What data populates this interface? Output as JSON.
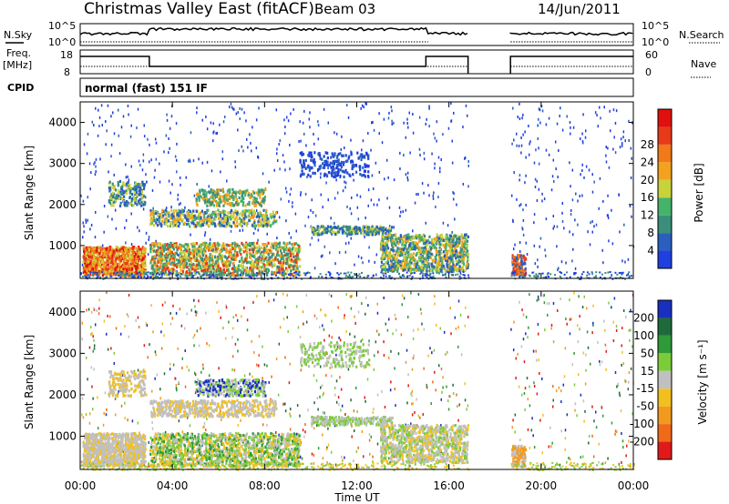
{
  "header": {
    "title": "Christmas Valley East (fitACF)",
    "beam": "Beam 03",
    "date": "14/Jun/2011"
  },
  "top_panels": {
    "nsky_label": "N.Sky",
    "nsky_ticks": [
      "10^5",
      "10^0"
    ],
    "nsearch_label": "N.Search",
    "nsearch_ticks": [
      "10^5",
      "10^0"
    ],
    "freq_label": "Freq.",
    "freq_unit": "[MHz]",
    "freq_ticks": [
      "18",
      "8"
    ],
    "nave_label": "Nave",
    "nave_ticks": [
      "60",
      "0"
    ],
    "cpid_label": "CPID",
    "cpid_value": "normal (fast) 151 IF"
  },
  "chart_data": [
    {
      "type": "heatmap",
      "name": "power",
      "ylabel": "Slant Range [km]",
      "yticks": [
        "1000",
        "2000",
        "3000",
        "4000"
      ],
      "ylim": [
        200,
        4500
      ],
      "colorbar_label": "Power [dB]",
      "colorbar_ticks": [
        "4",
        "8",
        "12",
        "16",
        "20",
        "24",
        "28"
      ],
      "colors": [
        "#1f3fe0",
        "#2a5fbf",
        "#3a8f7a",
        "#46b36a",
        "#c8d23a",
        "#f2a21e",
        "#f07a1a",
        "#e83a1a",
        "#e01010"
      ],
      "no_data_interval": [
        "16:50",
        "18:40"
      ]
    },
    {
      "type": "heatmap",
      "name": "velocity",
      "ylabel": "Slant Range [km]",
      "yticks": [
        "1000",
        "2000",
        "3000",
        "4000"
      ],
      "ylim": [
        200,
        4500
      ],
      "colorbar_label": "Velocity [m s⁻¹]",
      "colorbar_ticks": [
        "200",
        "100",
        "50",
        "15",
        "-15",
        "-50",
        "-100",
        "-200"
      ],
      "colors": [
        "#1a2fbf",
        "#1f6a3a",
        "#2f9a3a",
        "#7ccc3a",
        "#c0c0c0",
        "#f2c01e",
        "#f29a1e",
        "#f06a1a",
        "#e01a1a"
      ],
      "no_data_interval": [
        "16:50",
        "18:40"
      ]
    }
  ],
  "xaxis": {
    "label": "Time UT",
    "ticks": [
      "00:00",
      "04:00",
      "08:00",
      "12:00",
      "16:00",
      "20:00",
      "00:00"
    ]
  }
}
